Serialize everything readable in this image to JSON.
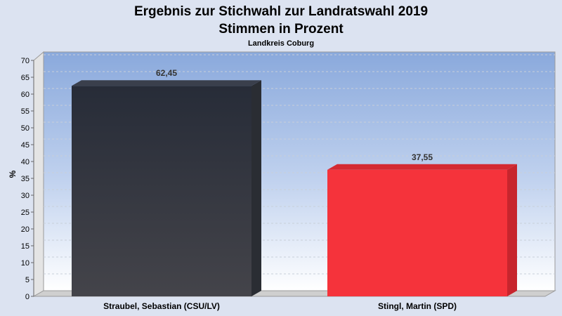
{
  "chart_data": {
    "type": "bar",
    "title": "Ergebnis zur Stichwahl zur Landratswahl 2019",
    "title_line2": "Stimmen in Prozent",
    "subtitle": "Landkreis Coburg",
    "xlabel": "",
    "ylabel": "%",
    "ylim": [
      0,
      70
    ],
    "yticks": [
      0,
      5,
      10,
      15,
      20,
      25,
      30,
      35,
      40,
      45,
      50,
      55,
      60,
      65,
      70
    ],
    "categories": [
      "Straubel, Sebastian (CSU/LV)",
      "Stingl, Martin (SPD)"
    ],
    "values": [
      62.45,
      37.55
    ],
    "value_labels": [
      "62,45",
      "37,55"
    ],
    "colors": [
      "#2b2e38",
      "#f5333b"
    ],
    "grid": true,
    "legend": "none"
  }
}
